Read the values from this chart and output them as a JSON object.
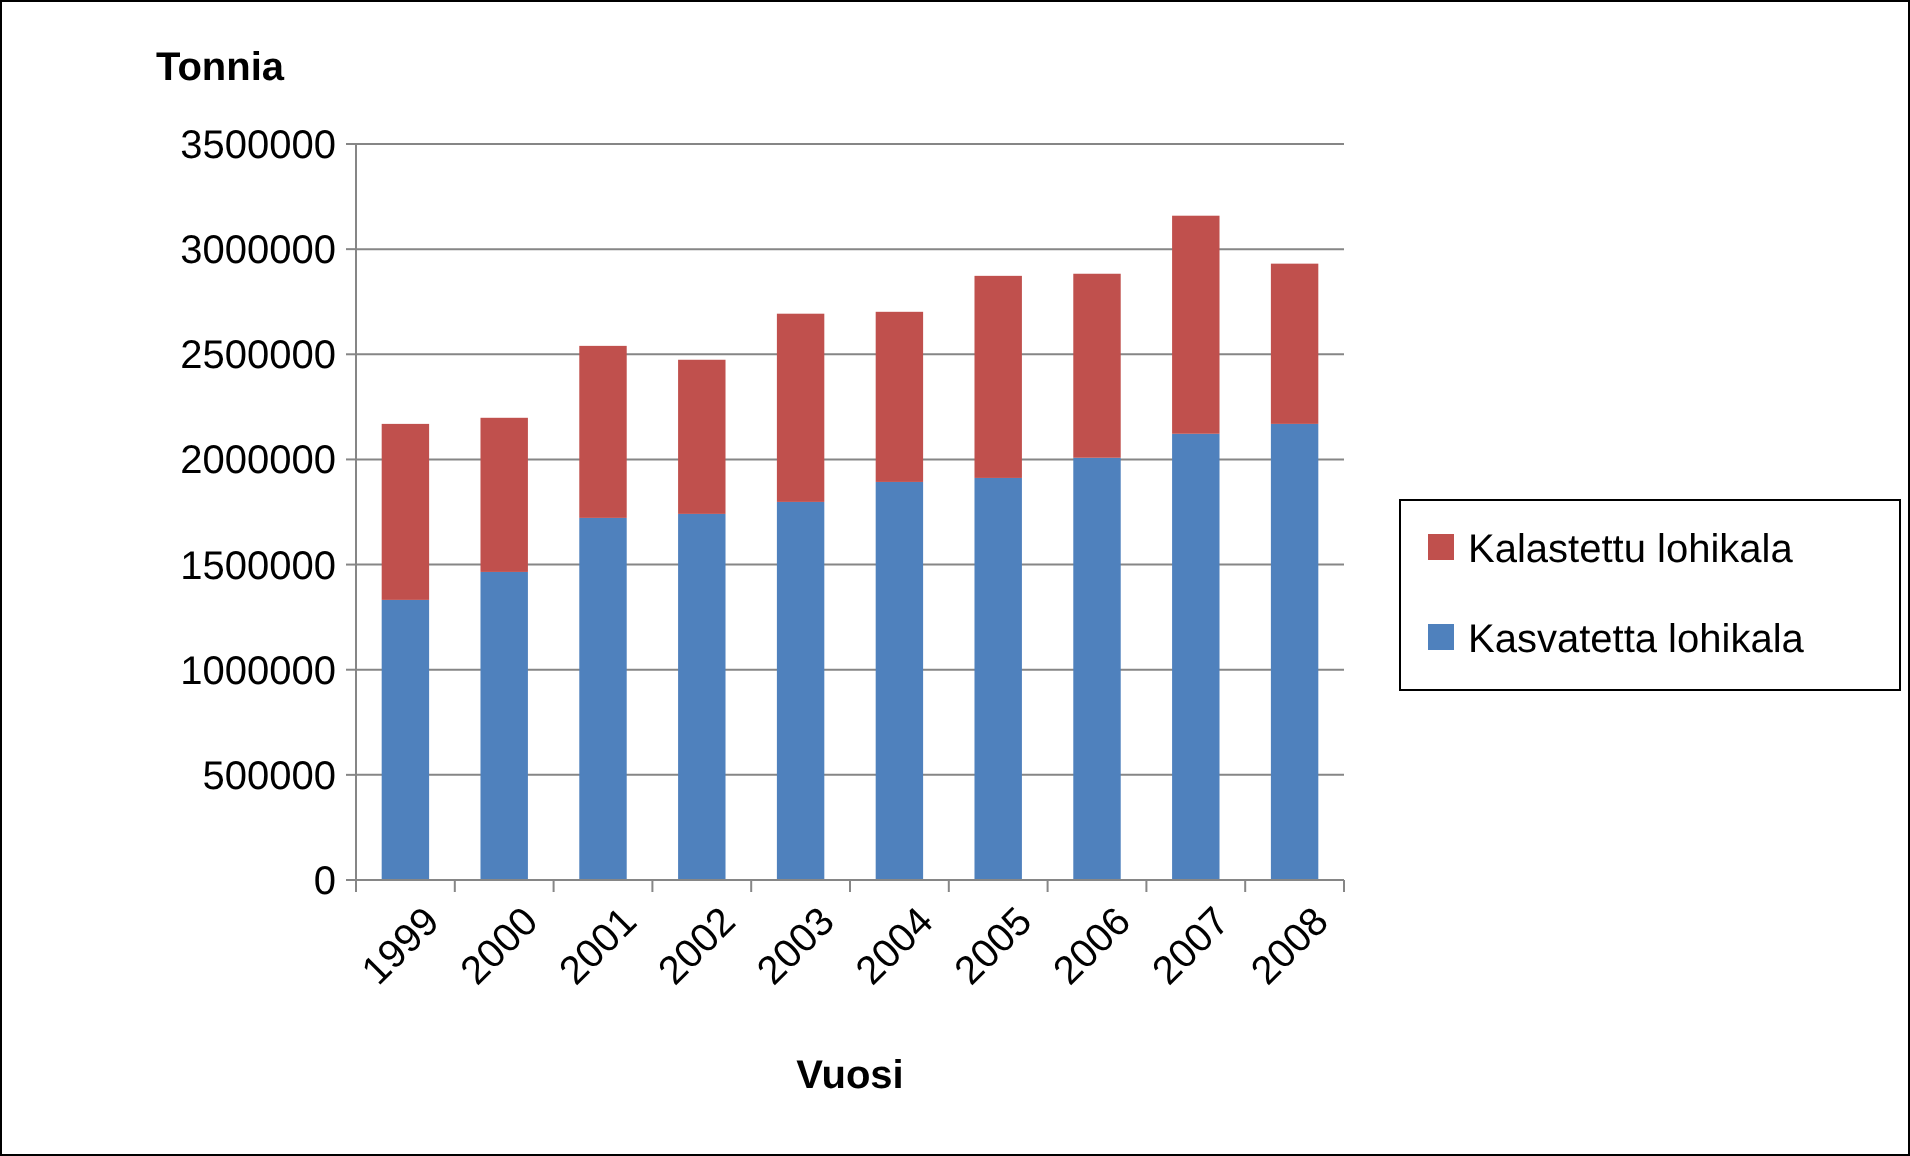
{
  "chart_data": {
    "type": "bar",
    "stacked": true,
    "ylabel": "Tonnia",
    "xlabel": "Vuosi",
    "categories": [
      "1999",
      "2000",
      "2001",
      "2002",
      "2003",
      "2004",
      "2005",
      "2006",
      "2007",
      "2008"
    ],
    "series": [
      {
        "name": "Kasvatetta lohikala",
        "color": "#4f81bd",
        "values": [
          1332000,
          1465000,
          1722000,
          1741000,
          1798000,
          1893000,
          1912000,
          2008000,
          2122000,
          2169000
        ]
      },
      {
        "name": "Kalastettu lohikala",
        "color": "#c0504d",
        "values": [
          837000,
          733000,
          818000,
          733000,
          895000,
          809000,
          961000,
          875000,
          1037000,
          762000
        ]
      }
    ],
    "ylim": [
      0,
      3500000
    ],
    "yticks": [
      0,
      500000,
      1000000,
      1500000,
      2000000,
      2500000,
      3000000,
      3500000
    ],
    "grid": "y",
    "legend": "right"
  }
}
